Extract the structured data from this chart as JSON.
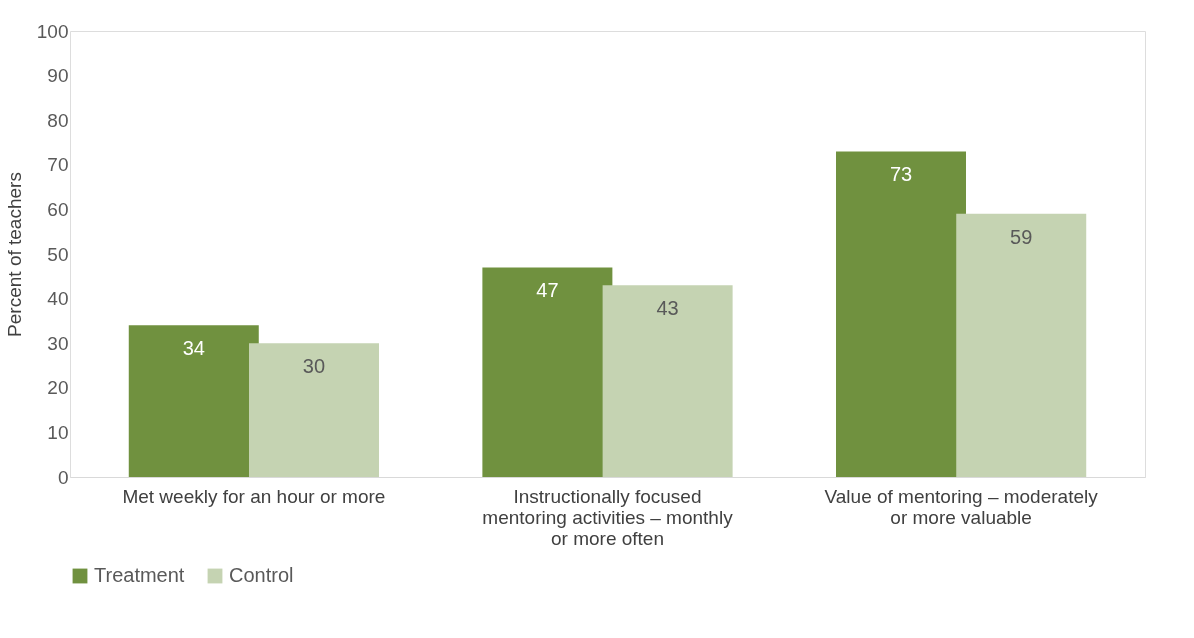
{
  "chart_data": {
    "type": "bar",
    "ylabel": "Percent of teachers",
    "categories": [
      "Met weekly for an hour or more",
      "Instructionally focused mentoring activities – monthly or more often",
      "Value of mentoring – moderately or more valuable"
    ],
    "series": [
      {
        "name": "Treatment",
        "color": "#70913f",
        "values": [
          34,
          47,
          73
        ]
      },
      {
        "name": "Control",
        "color": "#c5d3b2",
        "values": [
          30,
          43,
          59
        ]
      }
    ],
    "ylim": [
      0,
      100
    ],
    "yticks": [
      0,
      10,
      20,
      30,
      40,
      50,
      60,
      70,
      80,
      90,
      100
    ],
    "data_labels": true,
    "grid": false,
    "legend": "bottom"
  }
}
